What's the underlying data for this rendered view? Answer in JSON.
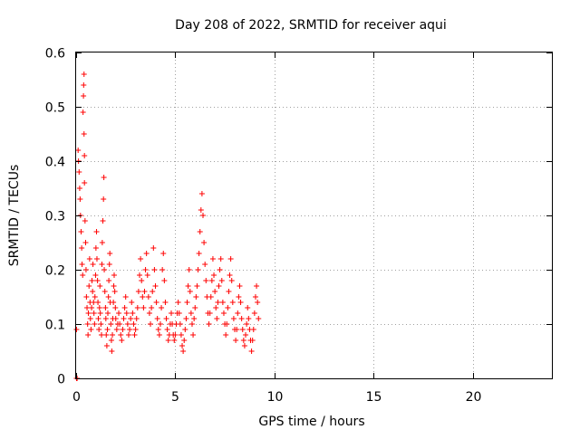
{
  "chart_data": {
    "type": "scatter",
    "title": "Day 208 of 2022, SRMTID for receiver aqui",
    "xlabel": "GPS time / hours",
    "ylabel": "SRMTID / TECUs",
    "xlim": [
      0,
      24
    ],
    "ylim": [
      0,
      0.6
    ],
    "x_ticks": [
      0,
      5,
      10,
      15,
      20
    ],
    "x_tick_labels": [
      "0",
      "5",
      "10",
      "15",
      "20"
    ],
    "y_ticks": [
      0,
      0.1,
      0.2,
      0.3,
      0.4,
      0.5,
      0.6
    ],
    "y_tick_labels": [
      "0",
      "0.1",
      "0.2",
      "0.3",
      "0.4",
      "0.5",
      "0.6"
    ],
    "grid": true,
    "marker": "plus",
    "color": "#ff0000",
    "series": [
      {
        "name": "SRMTID",
        "points": [
          [
            0.02,
            0.0
          ],
          [
            0.05,
            0.0
          ],
          [
            0.02,
            0.09
          ],
          [
            0.1,
            0.42
          ],
          [
            0.12,
            0.4
          ],
          [
            0.15,
            0.38
          ],
          [
            0.18,
            0.35
          ],
          [
            0.2,
            0.33
          ],
          [
            0.22,
            0.3
          ],
          [
            0.25,
            0.27
          ],
          [
            0.28,
            0.24
          ],
          [
            0.3,
            0.21
          ],
          [
            0.33,
            0.19
          ],
          [
            0.35,
            0.49
          ],
          [
            0.37,
            0.52
          ],
          [
            0.38,
            0.54
          ],
          [
            0.4,
            0.56
          ],
          [
            0.4,
            0.45
          ],
          [
            0.42,
            0.36
          ],
          [
            0.42,
            0.41
          ],
          [
            0.45,
            0.29
          ],
          [
            0.48,
            0.25
          ],
          [
            0.5,
            0.2
          ],
          [
            0.52,
            0.15
          ],
          [
            0.55,
            0.13
          ],
          [
            0.58,
            0.1
          ],
          [
            0.6,
            0.08
          ],
          [
            0.62,
            0.12
          ],
          [
            0.65,
            0.17
          ],
          [
            0.68,
            0.22
          ],
          [
            0.7,
            0.14
          ],
          [
            0.72,
            0.11
          ],
          [
            0.75,
            0.09
          ],
          [
            0.78,
            0.13
          ],
          [
            0.8,
            0.18
          ],
          [
            0.83,
            0.16
          ],
          [
            0.85,
            0.21
          ],
          [
            0.88,
            0.14
          ],
          [
            0.9,
            0.12
          ],
          [
            0.93,
            0.1
          ],
          [
            0.95,
            0.15
          ],
          [
            0.98,
            0.19
          ],
          [
            1.0,
            0.24
          ],
          [
            1.03,
            0.27
          ],
          [
            1.05,
            0.22
          ],
          [
            1.08,
            0.18
          ],
          [
            1.1,
            0.14
          ],
          [
            1.12,
            0.11
          ],
          [
            1.15,
            0.09
          ],
          [
            1.18,
            0.13
          ],
          [
            1.2,
            0.17
          ],
          [
            1.22,
            0.12
          ],
          [
            1.25,
            0.1
          ],
          [
            1.28,
            0.08
          ],
          [
            1.3,
            0.21
          ],
          [
            1.32,
            0.25
          ],
          [
            1.35,
            0.29
          ],
          [
            1.38,
            0.33
          ],
          [
            1.4,
            0.37
          ],
          [
            1.42,
            0.2
          ],
          [
            1.45,
            0.16
          ],
          [
            1.48,
            0.13
          ],
          [
            1.5,
            0.11
          ],
          [
            1.52,
            0.08
          ],
          [
            1.55,
            0.06
          ],
          [
            1.58,
            0.09
          ],
          [
            1.6,
            0.12
          ],
          [
            1.63,
            0.15
          ],
          [
            1.65,
            0.18
          ],
          [
            1.68,
            0.21
          ],
          [
            1.7,
            0.23
          ],
          [
            1.72,
            0.14
          ],
          [
            1.75,
            0.1
          ],
          [
            1.78,
            0.07
          ],
          [
            1.8,
            0.05
          ],
          [
            1.83,
            0.08
          ],
          [
            1.85,
            0.11
          ],
          [
            1.88,
            0.14
          ],
          [
            1.9,
            0.17
          ],
          [
            1.92,
            0.19
          ],
          [
            1.95,
            0.16
          ],
          [
            1.98,
            0.13
          ],
          [
            2.0,
            0.11
          ],
          [
            2.05,
            0.09
          ],
          [
            2.1,
            0.1
          ],
          [
            2.15,
            0.12
          ],
          [
            2.2,
            0.1
          ],
          [
            2.25,
            0.08
          ],
          [
            2.3,
            0.07
          ],
          [
            2.35,
            0.09
          ],
          [
            2.4,
            0.11
          ],
          [
            2.45,
            0.13
          ],
          [
            2.5,
            0.15
          ],
          [
            2.55,
            0.12
          ],
          [
            2.6,
            0.1
          ],
          [
            2.65,
            0.08
          ],
          [
            2.7,
            0.09
          ],
          [
            2.75,
            0.11
          ],
          [
            2.8,
            0.14
          ],
          [
            2.85,
            0.12
          ],
          [
            2.9,
            0.1
          ],
          [
            2.95,
            0.08
          ],
          [
            3.0,
            0.09
          ],
          [
            3.05,
            0.11
          ],
          [
            3.1,
            0.13
          ],
          [
            3.15,
            0.16
          ],
          [
            3.2,
            0.19
          ],
          [
            3.25,
            0.22
          ],
          [
            3.3,
            0.18
          ],
          [
            3.35,
            0.15
          ],
          [
            3.4,
            0.13
          ],
          [
            3.45,
            0.16
          ],
          [
            3.5,
            0.2
          ],
          [
            3.55,
            0.23
          ],
          [
            3.6,
            0.19
          ],
          [
            3.65,
            0.15
          ],
          [
            3.7,
            0.12
          ],
          [
            3.75,
            0.1
          ],
          [
            3.8,
            0.13
          ],
          [
            3.85,
            0.16
          ],
          [
            3.9,
            0.24
          ],
          [
            3.95,
            0.2
          ],
          [
            4.0,
            0.17
          ],
          [
            4.05,
            0.14
          ],
          [
            4.1,
            0.11
          ],
          [
            4.15,
            0.09
          ],
          [
            4.2,
            0.08
          ],
          [
            4.25,
            0.1
          ],
          [
            4.3,
            0.13
          ],
          [
            4.35,
            0.2
          ],
          [
            4.4,
            0.23
          ],
          [
            4.45,
            0.18
          ],
          [
            4.5,
            0.14
          ],
          [
            4.55,
            0.11
          ],
          [
            4.6,
            0.09
          ],
          [
            4.65,
            0.07
          ],
          [
            4.7,
            0.08
          ],
          [
            4.75,
            0.1
          ],
          [
            4.8,
            0.12
          ],
          [
            4.85,
            0.1
          ],
          [
            4.9,
            0.08
          ],
          [
            4.95,
            0.07
          ],
          [
            5.0,
            0.08
          ],
          [
            5.05,
            0.1
          ],
          [
            5.1,
            0.12
          ],
          [
            5.15,
            0.14
          ],
          [
            5.2,
            0.12
          ],
          [
            5.25,
            0.1
          ],
          [
            5.3,
            0.08
          ],
          [
            5.35,
            0.06
          ],
          [
            5.4,
            0.05
          ],
          [
            5.45,
            0.07
          ],
          [
            5.5,
            0.09
          ],
          [
            5.55,
            0.11
          ],
          [
            5.6,
            0.14
          ],
          [
            5.65,
            0.17
          ],
          [
            5.7,
            0.2
          ],
          [
            5.75,
            0.16
          ],
          [
            5.8,
            0.12
          ],
          [
            5.85,
            0.1
          ],
          [
            5.9,
            0.08
          ],
          [
            5.95,
            0.11
          ],
          [
            6.0,
            0.13
          ],
          [
            6.05,
            0.15
          ],
          [
            6.1,
            0.17
          ],
          [
            6.15,
            0.2
          ],
          [
            6.2,
            0.23
          ],
          [
            6.25,
            0.27
          ],
          [
            6.3,
            0.31
          ],
          [
            6.35,
            0.34
          ],
          [
            6.4,
            0.3
          ],
          [
            6.45,
            0.25
          ],
          [
            6.5,
            0.21
          ],
          [
            6.55,
            0.18
          ],
          [
            6.6,
            0.15
          ],
          [
            6.65,
            0.12
          ],
          [
            6.7,
            0.1
          ],
          [
            6.75,
            0.12
          ],
          [
            6.8,
            0.15
          ],
          [
            6.85,
            0.18
          ],
          [
            6.9,
            0.22
          ],
          [
            6.95,
            0.19
          ],
          [
            7.0,
            0.16
          ],
          [
            7.05,
            0.13
          ],
          [
            7.1,
            0.11
          ],
          [
            7.15,
            0.14
          ],
          [
            7.2,
            0.17
          ],
          [
            7.25,
            0.2
          ],
          [
            7.3,
            0.22
          ],
          [
            7.35,
            0.18
          ],
          [
            7.4,
            0.14
          ],
          [
            7.45,
            0.12
          ],
          [
            7.5,
            0.1
          ],
          [
            7.55,
            0.08
          ],
          [
            7.6,
            0.1
          ],
          [
            7.65,
            0.13
          ],
          [
            7.7,
            0.16
          ],
          [
            7.75,
            0.19
          ],
          [
            7.8,
            0.22
          ],
          [
            7.85,
            0.18
          ],
          [
            7.9,
            0.14
          ],
          [
            7.95,
            0.11
          ],
          [
            8.0,
            0.09
          ],
          [
            8.05,
            0.07
          ],
          [
            8.1,
            0.09
          ],
          [
            8.15,
            0.12
          ],
          [
            8.2,
            0.15
          ],
          [
            8.25,
            0.17
          ],
          [
            8.3,
            0.14
          ],
          [
            8.35,
            0.11
          ],
          [
            8.4,
            0.09
          ],
          [
            8.45,
            0.07
          ],
          [
            8.5,
            0.06
          ],
          [
            8.55,
            0.08
          ],
          [
            8.6,
            0.1
          ],
          [
            8.65,
            0.13
          ],
          [
            8.7,
            0.11
          ],
          [
            8.75,
            0.09
          ],
          [
            8.8,
            0.07
          ],
          [
            8.85,
            0.05
          ],
          [
            8.9,
            0.07
          ],
          [
            8.95,
            0.09
          ],
          [
            9.0,
            0.12
          ],
          [
            9.05,
            0.15
          ],
          [
            9.1,
            0.17
          ],
          [
            9.15,
            0.14
          ],
          [
            9.2,
            0.11
          ]
        ]
      }
    ]
  }
}
